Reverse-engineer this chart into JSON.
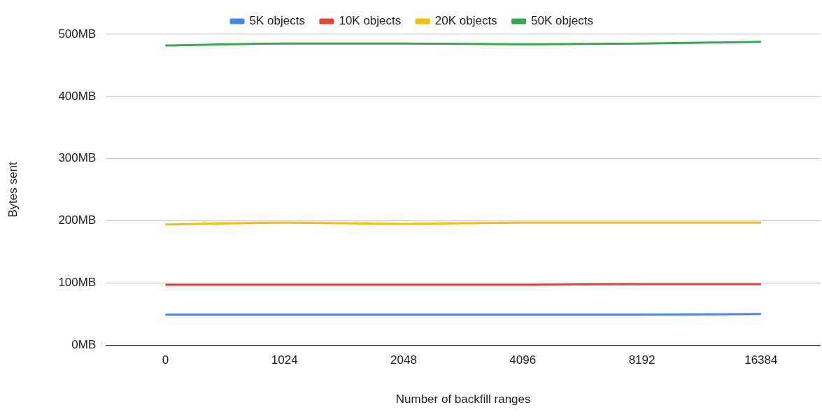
{
  "chart_data": {
    "type": "line",
    "xlabel": "Number of backfill ranges",
    "ylabel": "Bytes sent",
    "categories": [
      "0",
      "1024",
      "2048",
      "4096",
      "8192",
      "16384"
    ],
    "series": [
      {
        "name": "5K objects",
        "color": "#4285f4",
        "values": [
          49,
          49,
          49,
          49,
          49,
          50
        ]
      },
      {
        "name": "10K objects",
        "color": "#ea4335",
        "values": [
          97,
          97,
          97,
          97,
          98,
          98
        ]
      },
      {
        "name": "20K objects",
        "color": "#fbbc04",
        "values": [
          194,
          197,
          195,
          197,
          197,
          197
        ]
      },
      {
        "name": "50K objects",
        "color": "#34a853",
        "values": [
          482,
          485,
          485,
          484,
          485,
          488
        ]
      }
    ],
    "ylim": [
      0,
      500
    ],
    "yticks": [
      {
        "value": 0,
        "label": "0MB"
      },
      {
        "value": 100,
        "label": "100MB"
      },
      {
        "value": 200,
        "label": "200MB"
      },
      {
        "value": 300,
        "label": "300MB"
      },
      {
        "value": 400,
        "label": "400MB"
      },
      {
        "value": 500,
        "label": "500MB"
      }
    ],
    "grid": "y",
    "legend": "top",
    "marker": "none",
    "line_style": "solid"
  }
}
